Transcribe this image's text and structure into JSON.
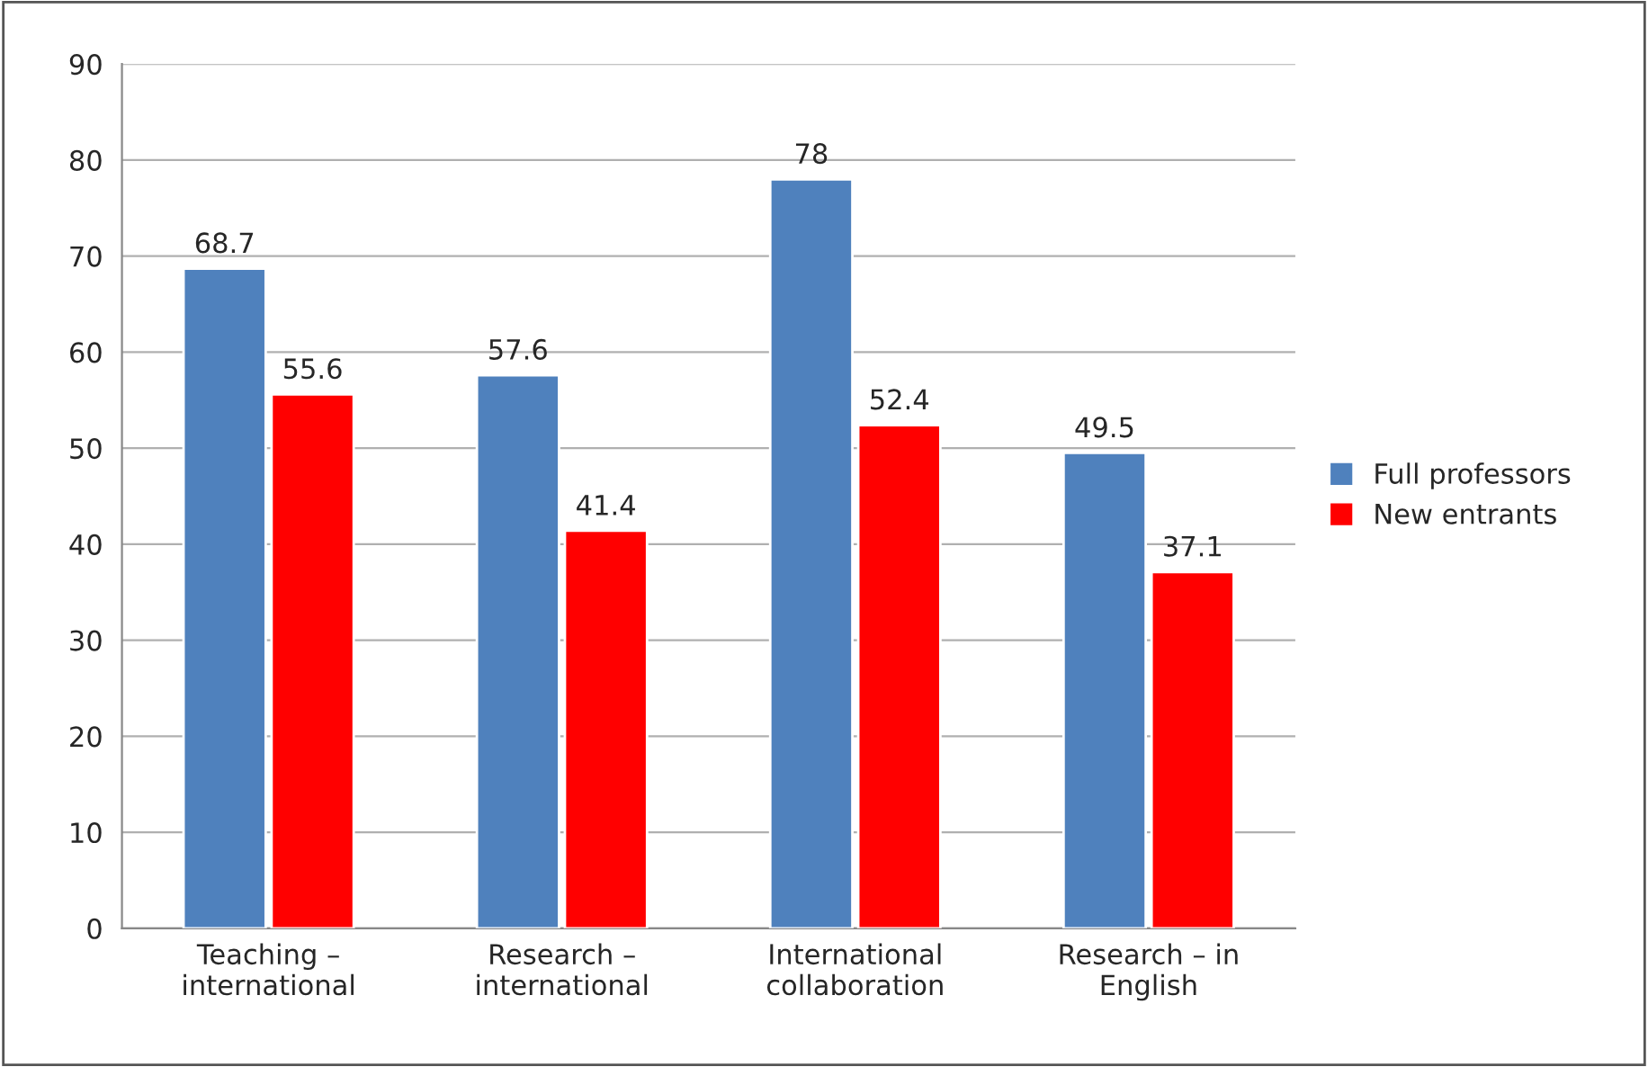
{
  "chart_data": {
    "type": "bar",
    "categories": [
      "Teaching –\ninternational",
      "Research –\ninternational",
      "International\ncollaboration",
      "Research – in\nEnglish"
    ],
    "series": [
      {
        "name": "Full professors",
        "color": "#4f81bd",
        "values": [
          68.7,
          57.6,
          78,
          49.5
        ]
      },
      {
        "name": "New entrants",
        "color": "#ff0000",
        "values": [
          55.6,
          41.4,
          52.4,
          37.1
        ]
      }
    ],
    "ylim": [
      0,
      90
    ],
    "yticks": [
      0,
      10,
      20,
      30,
      40,
      50,
      60,
      70,
      80,
      90
    ],
    "grid": "y",
    "legend": "right",
    "data_labels": true
  }
}
